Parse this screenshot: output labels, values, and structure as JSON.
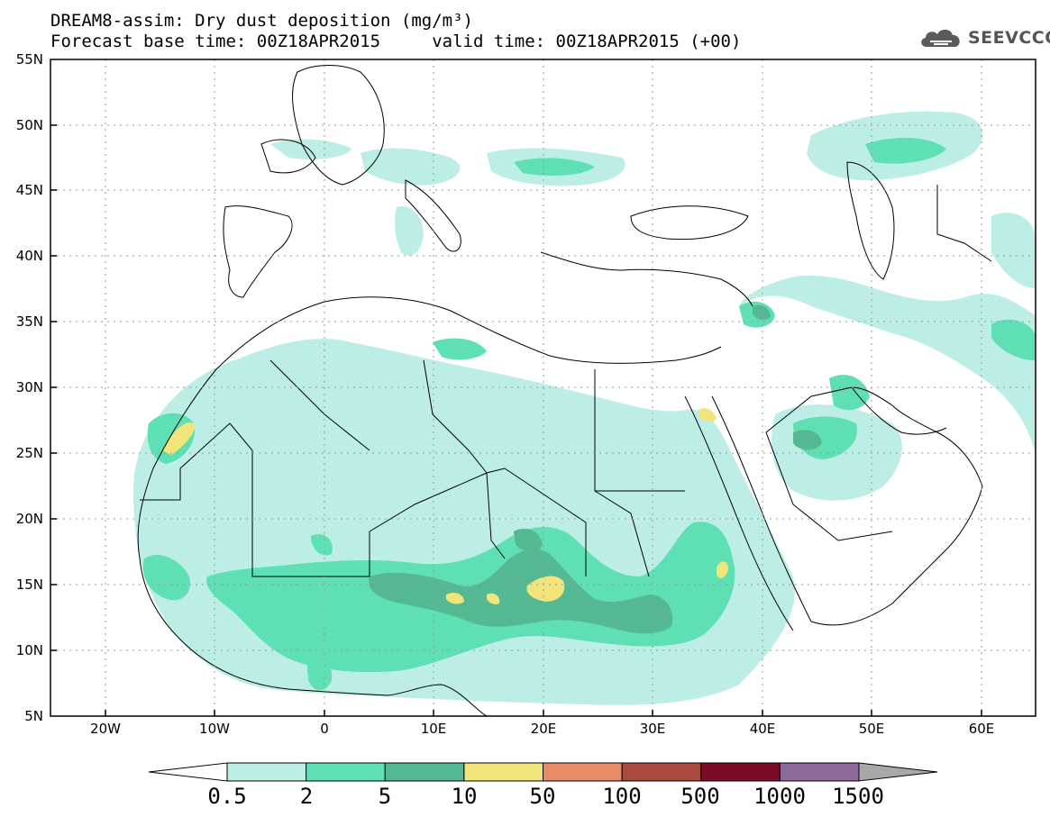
{
  "title_line1": "DREAM8-assim: Dry dust deposition (mg/m³)",
  "title_line2": "Forecast base time: 00Z18APR2015     valid time: 00Z18APR2015 (+00)",
  "logo_text": "SEEVCCC",
  "lat_labels": [
    "55N",
    "50N",
    "45N",
    "40N",
    "35N",
    "30N",
    "25N",
    "20N",
    "15N",
    "10N",
    "5N"
  ],
  "lon_labels": [
    "20W",
    "10W",
    "0",
    "10E",
    "20E",
    "30E",
    "40E",
    "50E",
    "60E"
  ],
  "colorbar": {
    "labels": [
      "0.5",
      "2",
      "5",
      "10",
      "50",
      "100",
      "500",
      "1000",
      "1500"
    ],
    "colors": [
      "#ffffff",
      "#bdeee6",
      "#5fe0b4",
      "#54b893",
      "#f0e47a",
      "#e98b66",
      "#aa4a3f",
      "#7a0c27",
      "#8c6a9a",
      "#a8a8a8"
    ]
  },
  "map_extent": {
    "lon_min": -25,
    "lon_max": 65,
    "lat_min": 5,
    "lat_max": 55
  }
}
